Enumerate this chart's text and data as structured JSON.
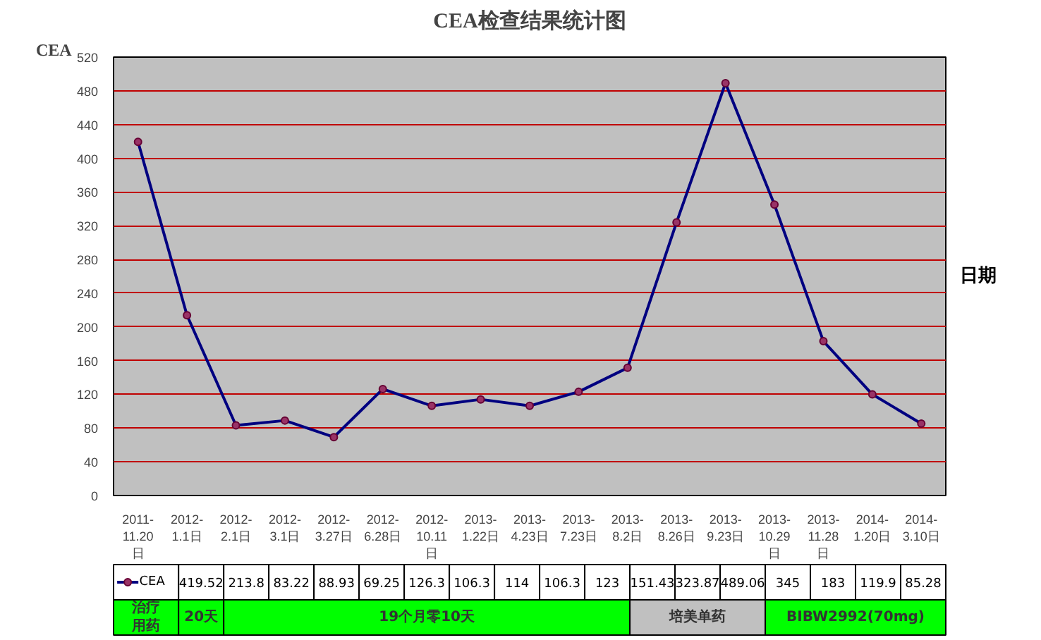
{
  "chart_data": {
    "type": "line",
    "title": "CEA检查结果统计图",
    "ylabel": "CEA",
    "xlabel": "日期",
    "categories": [
      "2011-11.20日",
      "2012-1.1日",
      "2012-2.1日",
      "2012-3.1日",
      "2012-3.27日",
      "2012-6.28日",
      "2012-10.11日",
      "2013-1.22日",
      "2013-4.23日",
      "2013-7.23日",
      "2013-8.2日",
      "2013-8.26日",
      "2013-9.23日",
      "2013-10.29日",
      "2013-11.28日",
      "2014-1.20日",
      "2014-3.10日"
    ],
    "series": [
      {
        "name": "CEA",
        "color": "#000080",
        "values": [
          419.52,
          213.8,
          83.22,
          88.93,
          69.25,
          126.3,
          106.3,
          114,
          106.3,
          123,
          151.43,
          323.87,
          489.06,
          345,
          183,
          119.9,
          85.28
        ]
      }
    ],
    "value_labels": [
      "419.52",
      "213.8",
      "83.22",
      "88.93",
      "69.25",
      "126.3",
      "106.3",
      "114",
      "106.3",
      "123",
      "151.43",
      "323.87",
      "489.06",
      "345",
      "183",
      "119.9",
      "85.28"
    ],
    "marker": "circle",
    "grid": "y",
    "ylim": [
      0,
      520
    ],
    "yticks": [
      0,
      40,
      80,
      120,
      160,
      200,
      240,
      280,
      320,
      360,
      400,
      440,
      480,
      520
    ],
    "annotations": [
      "治疗用药",
      "20天",
      "19个月零10天",
      "培美单药",
      "BIBW2992(70mg)"
    ]
  }
}
